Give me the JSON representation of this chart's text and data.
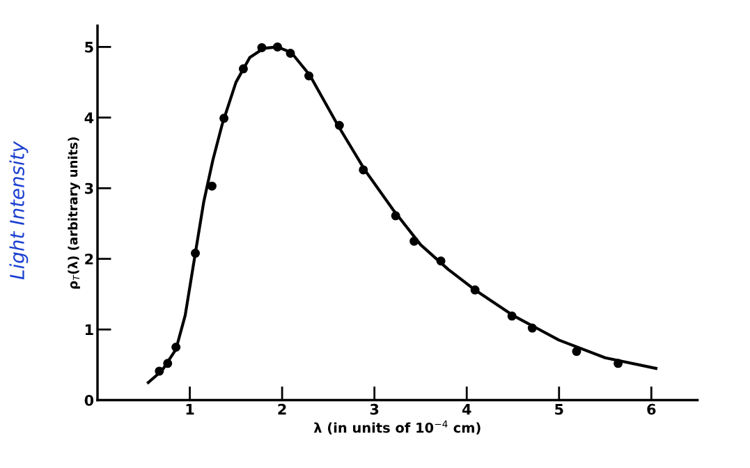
{
  "chart_data": {
    "type": "scatter",
    "xlabel": "λ (in units of 10$^{−4}$ cm)",
    "ylabel": "ρ$_{T}$(λ) (arbitrary units)",
    "annotations": [
      "Light Intensity"
    ],
    "series": [
      {
        "type": "line",
        "color": "#000000",
        "marker": "none",
        "line_style": "solid",
        "x": [
          0.55,
          0.7,
          0.85,
          0.95,
          1.05,
          1.15,
          1.25,
          1.35,
          1.5,
          1.65,
          1.8,
          1.95,
          2.1,
          2.3,
          2.6,
          2.9,
          3.2,
          3.5,
          3.8,
          4.1,
          4.5,
          5.0,
          5.5,
          6.05
        ],
        "values": [
          0.25,
          0.42,
          0.72,
          1.2,
          2.0,
          2.8,
          3.4,
          3.9,
          4.5,
          4.85,
          4.98,
          5.0,
          4.92,
          4.6,
          3.9,
          3.25,
          2.7,
          2.2,
          1.85,
          1.55,
          1.2,
          0.85,
          0.6,
          0.45
        ]
      },
      {
        "color": "#000000",
        "marker": "circle",
        "x": [
          0.67,
          0.76,
          0.85,
          1.06,
          1.24,
          1.37,
          1.58,
          1.78,
          1.95,
          2.09,
          2.29,
          2.62,
          2.88,
          3.23,
          3.43,
          3.72,
          4.09,
          4.49,
          4.71,
          5.19,
          5.64
        ],
        "values": [
          0.41,
          0.52,
          0.75,
          2.08,
          3.03,
          3.99,
          4.69,
          4.99,
          5.0,
          4.91,
          4.59,
          3.89,
          3.26,
          2.61,
          2.25,
          1.97,
          1.56,
          1.19,
          1.02,
          0.69,
          0.52
        ]
      }
    ],
    "xlim": [
      0,
      6.5
    ],
    "ylim": [
      0,
      5.3
    ],
    "xticks": [
      1,
      2,
      3,
      4,
      5,
      6
    ],
    "yticks": [
      0,
      1,
      2,
      3,
      4,
      5
    ],
    "grid": false,
    "legend": false
  }
}
